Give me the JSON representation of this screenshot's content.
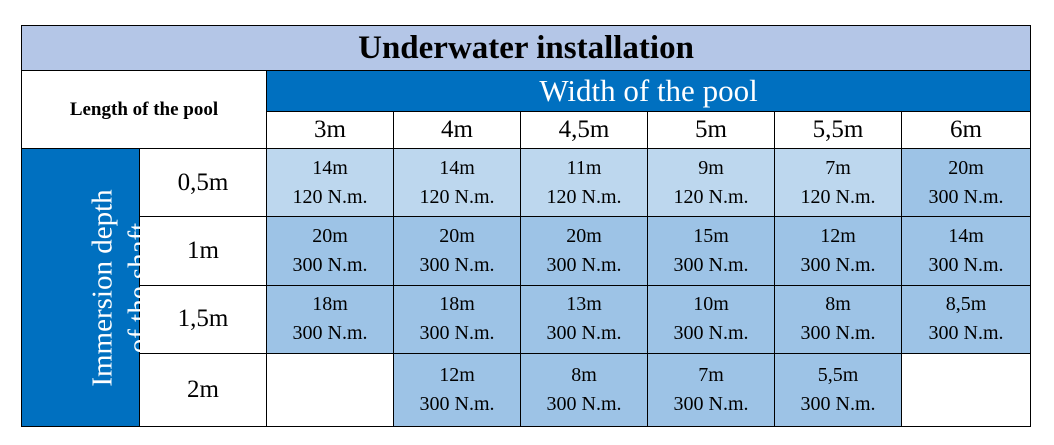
{
  "title": "Underwater installation",
  "length_label": "Length of the pool",
  "width_label": "Width of the pool",
  "depth_label_line1": "Immersion depth",
  "depth_label_line2": "of the shaft",
  "widths": [
    "3m",
    "4m",
    "4,5m",
    "5m",
    "5,5m",
    "6m"
  ],
  "rows": [
    {
      "depth": "0,5m",
      "cells": [
        {
          "length": "14m",
          "torque": "120 N.m.",
          "shade": "light"
        },
        {
          "length": "14m",
          "torque": "120 N.m.",
          "shade": "light"
        },
        {
          "length": "11m",
          "torque": "120 N.m.",
          "shade": "light"
        },
        {
          "length": "9m",
          "torque": "120 N.m.",
          "shade": "light"
        },
        {
          "length": "7m",
          "torque": "120 N.m.",
          "shade": "light"
        },
        {
          "length": "20m",
          "torque": "300 N.m.",
          "shade": "mid"
        }
      ]
    },
    {
      "depth": "1m",
      "cells": [
        {
          "length": "20m",
          "torque": "300 N.m.",
          "shade": "mid"
        },
        {
          "length": "20m",
          "torque": "300 N.m.",
          "shade": "mid"
        },
        {
          "length": "20m",
          "torque": "300 N.m.",
          "shade": "mid"
        },
        {
          "length": "15m",
          "torque": "300 N.m.",
          "shade": "mid"
        },
        {
          "length": "12m",
          "torque": "300 N.m.",
          "shade": "mid"
        },
        {
          "length": "14m",
          "torque": "300 N.m.",
          "shade": "mid"
        }
      ]
    },
    {
      "depth": "1,5m",
      "cells": [
        {
          "length": "18m",
          "torque": "300 N.m.",
          "shade": "mid"
        },
        {
          "length": "18m",
          "torque": "300 N.m.",
          "shade": "mid"
        },
        {
          "length": "13m",
          "torque": "300 N.m.",
          "shade": "mid"
        },
        {
          "length": "10m",
          "torque": "300 N.m.",
          "shade": "mid"
        },
        {
          "length": "8m",
          "torque": "300 N.m.",
          "shade": "mid"
        },
        {
          "length": "8,5m",
          "torque": "300 N.m.",
          "shade": "mid"
        }
      ]
    },
    {
      "depth": "2m",
      "cells": [
        {
          "length": "",
          "torque": "",
          "shade": "empty"
        },
        {
          "length": "12m",
          "torque": "300 N.m.",
          "shade": "mid"
        },
        {
          "length": "8m",
          "torque": "300 N.m.",
          "shade": "mid"
        },
        {
          "length": "7m",
          "torque": "300 N.m.",
          "shade": "mid"
        },
        {
          "length": "5,5m",
          "torque": "300 N.m.",
          "shade": "mid"
        },
        {
          "length": "",
          "torque": "",
          "shade": "empty"
        }
      ]
    }
  ],
  "colors": {
    "title_bg": "#b4c6e7",
    "header_blue": "#0070c0",
    "light_cell": "#bdd7ee",
    "mid_cell": "#9dc3e6"
  }
}
